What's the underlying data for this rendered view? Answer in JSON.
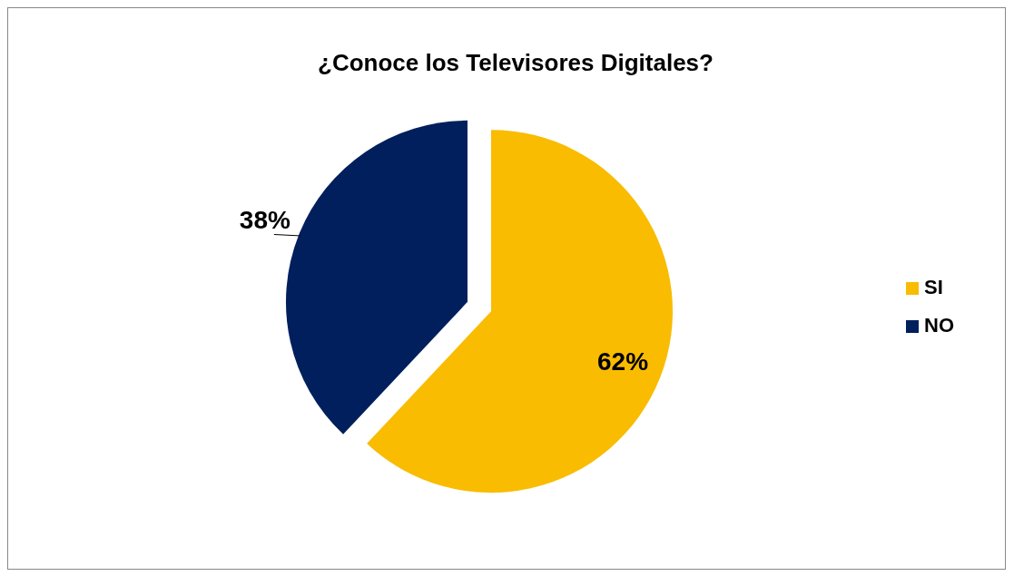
{
  "chart_data": {
    "type": "pie",
    "title": "¿Conoce los Televisores Digitales?",
    "categories": [
      "SI",
      "NO"
    ],
    "values": [
      62,
      38
    ],
    "colors": [
      "#f9bc00",
      "#001f5c"
    ],
    "value_labels": [
      "62%",
      "38%"
    ],
    "legend": "right"
  }
}
